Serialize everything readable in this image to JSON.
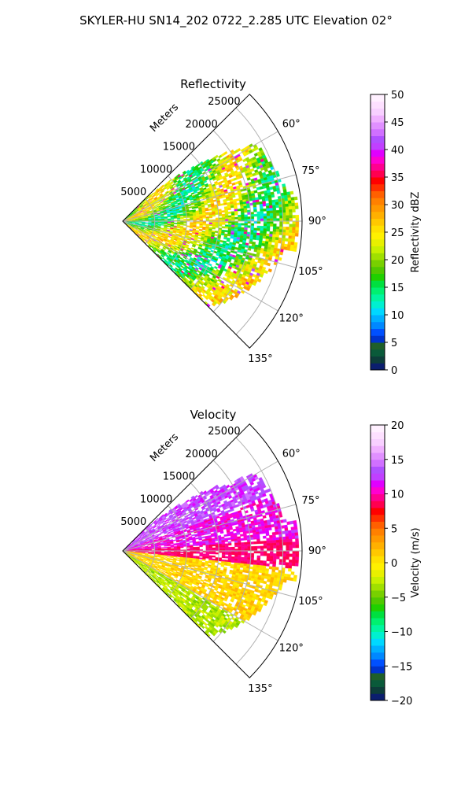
{
  "figure_title": "SKYLER-HU  SN14_202  0722_2.285 UTC Elevation 02°",
  "chart_data": [
    {
      "type": "heatmap",
      "projection": "polar-sector",
      "title": "Reflectivity",
      "range_label": "Meters",
      "range_ticks": [
        5000,
        10000,
        15000,
        20000,
        25000
      ],
      "range_tick_labels": [
        "5000",
        "10000",
        "15000",
        "20000",
        "25000"
      ],
      "rmax": 28000,
      "azimuth_range_deg": [
        45,
        135
      ],
      "azimuth_ticks": [
        60,
        75,
        90,
        105,
        120,
        135
      ],
      "azimuth_tick_labels": [
        "60°",
        "75°",
        "90°",
        "105°",
        "120°",
        "135°"
      ],
      "grid": true,
      "colorbar": {
        "label": "Reflectivity dBZ",
        "min": 0,
        "max": 50,
        "ticks": [
          0,
          5,
          10,
          15,
          20,
          25,
          30,
          35,
          40,
          45,
          50
        ],
        "tick_labels": [
          "0",
          "5",
          "10",
          "15",
          "20",
          "25",
          "30",
          "35",
          "40",
          "45",
          "50"
        ],
        "colors": [
          "#0b1e6e",
          "#0d3d3a",
          "#0a5a3a",
          "#1f5f2a",
          "#0033cc",
          "#0050ff",
          "#0088ff",
          "#00b0ff",
          "#00d8ff",
          "#00f0d0",
          "#00f5a0",
          "#00f070",
          "#00e040",
          "#20d000",
          "#50c800",
          "#78d000",
          "#a0e000",
          "#c8f000",
          "#e8f000",
          "#fff000",
          "#ffe000",
          "#ffc800",
          "#ffb000",
          "#ff9800",
          "#ff8000",
          "#ff6000",
          "#ff3000",
          "#ff0000",
          "#ff0050",
          "#ff0090",
          "#ff00d0",
          "#e000ff",
          "#c040ff",
          "#b050ff",
          "#d070ff",
          "#e090ff",
          "#f0b0ff",
          "#f8d0ff",
          "#fde0ff",
          "#fff0ff"
        ]
      },
      "echo_range_dbz": [
        15,
        40
      ]
    },
    {
      "type": "heatmap",
      "projection": "polar-sector",
      "title": "Velocity",
      "range_label": "Meters",
      "range_ticks": [
        5000,
        10000,
        15000,
        20000,
        25000
      ],
      "range_tick_labels": [
        "5000",
        "10000",
        "15000",
        "20000",
        "25000"
      ],
      "rmax": 28000,
      "azimuth_range_deg": [
        45,
        135
      ],
      "azimuth_ticks": [
        60,
        75,
        90,
        105,
        120,
        135
      ],
      "azimuth_tick_labels": [
        "60°",
        "75°",
        "90°",
        "105°",
        "120°",
        "135°"
      ],
      "grid": true,
      "colorbar": {
        "label": "Velocity (m/s)",
        "min": -20,
        "max": 20,
        "ticks": [
          -20,
          -15,
          -10,
          -5,
          0,
          5,
          10,
          15,
          20
        ],
        "tick_labels": [
          "−20",
          "−15",
          "−10",
          "−5",
          "0",
          "5",
          "10",
          "15",
          "20"
        ],
        "colors": [
          "#0b1e6e",
          "#0d3d3a",
          "#0a5a3a",
          "#1f5f2a",
          "#0033cc",
          "#0050ff",
          "#0088ff",
          "#00b0ff",
          "#00d8ff",
          "#00f0d0",
          "#00f5a0",
          "#00f070",
          "#00e040",
          "#20d000",
          "#50c800",
          "#78d000",
          "#a0e000",
          "#c8f000",
          "#e8f000",
          "#fff000",
          "#ffe000",
          "#ffc800",
          "#ffb000",
          "#ff9800",
          "#ff8000",
          "#ff6000",
          "#ff3000",
          "#ff0000",
          "#ff0050",
          "#ff0090",
          "#ff00d0",
          "#e000ff",
          "#c040ff",
          "#b050ff",
          "#d070ff",
          "#e090ff",
          "#f0b0ff",
          "#f8d0ff",
          "#fde0ff",
          "#fff0ff"
        ]
      },
      "echo_range_ms": [
        -8,
        15
      ]
    }
  ]
}
